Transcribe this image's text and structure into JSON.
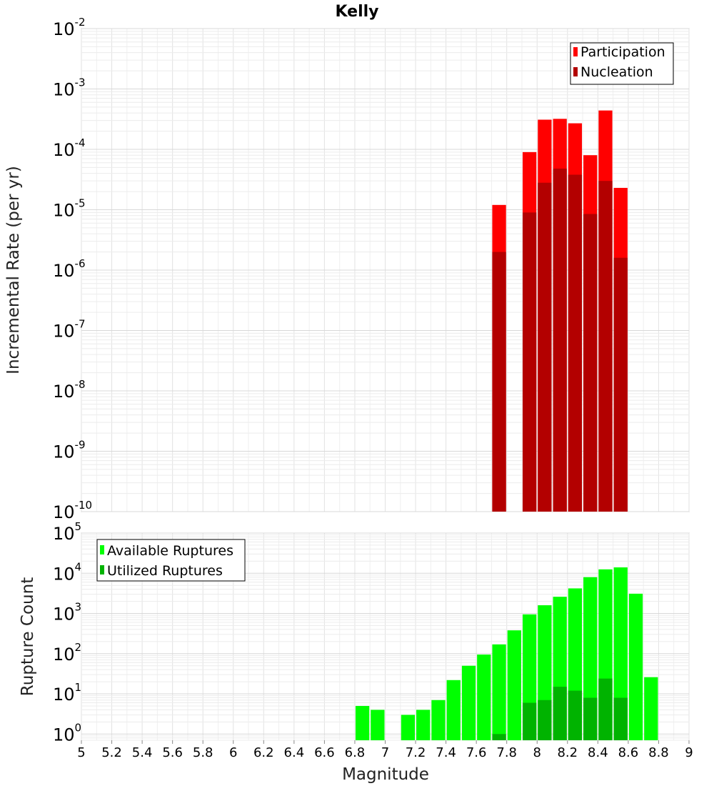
{
  "chart_data": [
    {
      "type": "bar",
      "title": "Kelly",
      "xlabel": "Magnitude",
      "ylabel": "Incremental Rate (per yr)",
      "yscale": "log",
      "xlim": [
        5,
        9
      ],
      "ylim": [
        1e-10,
        0.01
      ],
      "bin_width": 0.1,
      "legend": "top-right",
      "series": [
        {
          "name": "Participation",
          "color": "#ff0000",
          "x": [
            7.75,
            7.95,
            8.05,
            8.15,
            8.25,
            8.35,
            8.45,
            8.55
          ],
          "values": [
            1.2e-05,
            9e-05,
            0.00031,
            0.00032,
            0.00027,
            8e-05,
            0.00044,
            2.3e-05
          ]
        },
        {
          "name": "Nucleation",
          "color": "#b30000",
          "x": [
            7.75,
            7.95,
            8.05,
            8.15,
            8.25,
            8.35,
            8.45,
            8.55
          ],
          "values": [
            2e-06,
            9e-06,
            2.8e-05,
            4.8e-05,
            3.8e-05,
            8.5e-06,
            3e-05,
            1.6e-06
          ]
        }
      ]
    },
    {
      "type": "bar",
      "xlabel": "Magnitude",
      "ylabel": "Rupture Count",
      "yscale": "log",
      "xlim": [
        5,
        9
      ],
      "ylim": [
        0.7,
        100000.0
      ],
      "bin_width": 0.1,
      "legend": "top-left",
      "series": [
        {
          "name": "Available Ruptures",
          "color": "#00ff00",
          "x": [
            6.85,
            6.95,
            7.15,
            7.25,
            7.35,
            7.45,
            7.55,
            7.65,
            7.75,
            7.85,
            7.95,
            8.05,
            8.15,
            8.25,
            8.35,
            8.45,
            8.55,
            8.65,
            8.75
          ],
          "values": [
            5,
            4,
            3,
            4,
            7,
            22,
            50,
            95,
            170,
            380,
            950,
            1600,
            2600,
            4200,
            8000,
            12500,
            14000,
            3100,
            26
          ]
        },
        {
          "name": "Utilized Ruptures",
          "color": "#00b300",
          "x": [
            7.75,
            7.95,
            8.05,
            8.15,
            8.25,
            8.35,
            8.45,
            8.55
          ],
          "values": [
            1,
            6,
            7,
            15,
            12,
            8,
            24,
            8
          ]
        }
      ]
    }
  ],
  "xticks": [
    "5",
    "5.2",
    "5.4",
    "5.6",
    "5.8",
    "6",
    "6.2",
    "6.4",
    "6.6",
    "6.8",
    "7",
    "7.2",
    "7.4",
    "7.6",
    "7.8",
    "8",
    "8.2",
    "8.4",
    "8.6",
    "8.8",
    "9"
  ],
  "top_yticks": [
    {
      "base": "10",
      "exp": "-10",
      "value": 1e-10
    },
    {
      "base": "10",
      "exp": "-9",
      "value": 1e-09
    },
    {
      "base": "10",
      "exp": "-8",
      "value": 1e-08
    },
    {
      "base": "10",
      "exp": "-7",
      "value": 1e-07
    },
    {
      "base": "10",
      "exp": "-6",
      "value": 1e-06
    },
    {
      "base": "10",
      "exp": "-5",
      "value": 1e-05
    },
    {
      "base": "10",
      "exp": "-4",
      "value": 0.0001
    },
    {
      "base": "10",
      "exp": "-3",
      "value": 0.001
    },
    {
      "base": "10",
      "exp": "-2",
      "value": 0.01
    }
  ],
  "bottom_yticks": [
    {
      "base": "10",
      "exp": "0",
      "value": 1
    },
    {
      "base": "10",
      "exp": "1",
      "value": 10
    },
    {
      "base": "10",
      "exp": "2",
      "value": 100
    },
    {
      "base": "10",
      "exp": "3",
      "value": 1000
    },
    {
      "base": "10",
      "exp": "4",
      "value": 10000
    },
    {
      "base": "10",
      "exp": "5",
      "value": 100000
    }
  ]
}
